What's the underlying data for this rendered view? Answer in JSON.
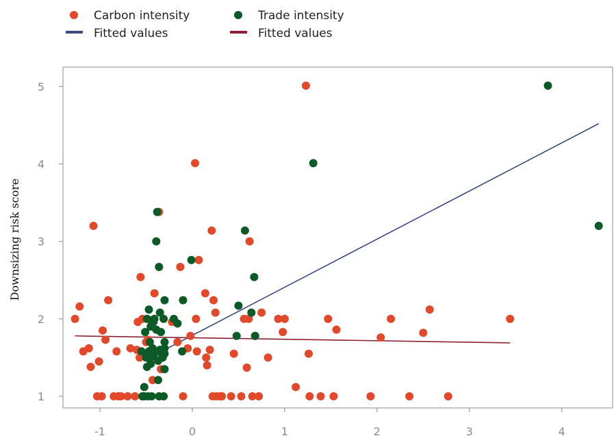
{
  "chart_data": {
    "type": "scatter",
    "title": "",
    "xlabel": "",
    "ylabel": "Downsizing risk score",
    "xlim": [
      -1.4,
      4.55
    ],
    "ylim": [
      0.85,
      5.25
    ],
    "xticks": [
      -1,
      0,
      1,
      2,
      3,
      4
    ],
    "yticks": [
      1,
      2,
      3,
      4,
      5
    ],
    "grid": false,
    "legend_position": "top-left",
    "series": [
      {
        "name": "Carbon intensity",
        "kind": "scatter",
        "color": "#e2492a",
        "points": [
          [
            -1.27,
            2.0
          ],
          [
            -1.22,
            2.16
          ],
          [
            -1.18,
            1.58
          ],
          [
            -1.12,
            1.62
          ],
          [
            -1.1,
            1.38
          ],
          [
            -1.07,
            3.2
          ],
          [
            -1.03,
            1.0
          ],
          [
            -1.01,
            1.45
          ],
          [
            -0.98,
            1.0
          ],
          [
            -0.97,
            1.85
          ],
          [
            -0.94,
            1.73
          ],
          [
            -0.91,
            2.24
          ],
          [
            -0.85,
            1.0
          ],
          [
            -0.82,
            1.58
          ],
          [
            -0.8,
            1.0
          ],
          [
            -0.77,
            1.0
          ],
          [
            -0.7,
            1.0
          ],
          [
            -0.67,
            1.62
          ],
          [
            -0.62,
            1.0
          ],
          [
            -0.6,
            1.6
          ],
          [
            -0.59,
            1.96
          ],
          [
            -0.57,
            1.5
          ],
          [
            -0.56,
            2.54
          ],
          [
            -0.54,
            2.0
          ],
          [
            -0.5,
            1.7
          ],
          [
            -0.48,
            1.73
          ],
          [
            -0.45,
            1.98
          ],
          [
            -0.43,
            1.21
          ],
          [
            -0.41,
            2.33
          ],
          [
            -0.36,
            3.38
          ],
          [
            -0.34,
            1.35
          ],
          [
            -0.22,
            1.96
          ],
          [
            -0.16,
            1.7
          ],
          [
            -0.13,
            2.67
          ],
          [
            -0.1,
            1.0
          ],
          [
            -0.05,
            1.62
          ],
          [
            -0.02,
            1.78
          ],
          [
            0.03,
            4.01
          ],
          [
            0.04,
            2.0
          ],
          [
            0.05,
            1.58
          ],
          [
            0.07,
            2.76
          ],
          [
            0.14,
            2.33
          ],
          [
            0.15,
            1.5
          ],
          [
            0.16,
            1.4
          ],
          [
            0.19,
            1.6
          ],
          [
            0.21,
            3.14
          ],
          [
            0.22,
            1.0
          ],
          [
            0.23,
            2.24
          ],
          [
            0.25,
            2.08
          ],
          [
            0.26,
            1.0
          ],
          [
            0.3,
            1.0
          ],
          [
            0.32,
            1.0
          ],
          [
            0.42,
            1.0
          ],
          [
            0.45,
            1.55
          ],
          [
            0.53,
            1.0
          ],
          [
            0.56,
            2.0
          ],
          [
            0.59,
            1.37
          ],
          [
            0.61,
            2.0
          ],
          [
            0.62,
            3.0
          ],
          [
            0.65,
            1.0
          ],
          [
            0.68,
            1.78
          ],
          [
            0.72,
            1.0
          ],
          [
            0.75,
            2.08
          ],
          [
            0.82,
            1.5
          ],
          [
            0.93,
            2.0
          ],
          [
            0.98,
            1.83
          ],
          [
            1.0,
            2.0
          ],
          [
            1.12,
            1.12
          ],
          [
            1.23,
            5.01
          ],
          [
            1.26,
            1.55
          ],
          [
            1.27,
            1.0
          ],
          [
            1.39,
            1.0
          ],
          [
            1.47,
            2.0
          ],
          [
            1.53,
            1.0
          ],
          [
            1.56,
            1.86
          ],
          [
            1.93,
            1.0
          ],
          [
            2.04,
            1.76
          ],
          [
            2.15,
            2.0
          ],
          [
            2.35,
            1.0
          ],
          [
            2.5,
            1.82
          ],
          [
            2.57,
            2.12
          ],
          [
            2.77,
            1.0
          ],
          [
            3.44,
            2.0
          ]
        ]
      },
      {
        "name": "Trade intensity",
        "kind": "scatter",
        "color": "#0c5a28",
        "points": [
          [
            -0.55,
            1.58
          ],
          [
            -0.54,
            1.0
          ],
          [
            -0.52,
            1.12
          ],
          [
            -0.52,
            1.0
          ],
          [
            -0.51,
            1.83
          ],
          [
            -0.5,
            1.5
          ],
          [
            -0.49,
            2.0
          ],
          [
            -0.49,
            1.38
          ],
          [
            -0.48,
            1.0
          ],
          [
            -0.47,
            2.12
          ],
          [
            -0.47,
            1.58
          ],
          [
            -0.46,
            1.7
          ],
          [
            -0.46,
            1.48
          ],
          [
            -0.45,
            1.9
          ],
          [
            -0.45,
            1.42
          ],
          [
            -0.44,
            1.0
          ],
          [
            -0.43,
            1.62
          ],
          [
            -0.42,
            1.96
          ],
          [
            -0.42,
            1.52
          ],
          [
            -0.41,
            2.0
          ],
          [
            -0.4,
            1.58
          ],
          [
            -0.39,
            1.86
          ],
          [
            -0.39,
            3.0
          ],
          [
            -0.38,
            3.38
          ],
          [
            -0.37,
            1.46
          ],
          [
            -0.37,
            1.21
          ],
          [
            -0.36,
            2.67
          ],
          [
            -0.36,
            1.0
          ],
          [
            -0.35,
            2.08
          ],
          [
            -0.35,
            1.6
          ],
          [
            -0.34,
            1.83
          ],
          [
            -0.33,
            1.54
          ],
          [
            -0.32,
            1.5
          ],
          [
            -0.31,
            2.0
          ],
          [
            -0.31,
            1.0
          ],
          [
            -0.3,
            2.24
          ],
          [
            -0.3,
            1.7
          ],
          [
            -0.3,
            1.55
          ],
          [
            -0.3,
            1.62
          ],
          [
            -0.3,
            1.35
          ],
          [
            -0.2,
            2.0
          ],
          [
            -0.16,
            1.94
          ],
          [
            -0.11,
            1.58
          ],
          [
            -0.1,
            2.24
          ],
          [
            -0.01,
            2.76
          ],
          [
            0.48,
            1.78
          ],
          [
            0.5,
            2.17
          ],
          [
            0.57,
            3.14
          ],
          [
            0.64,
            2.08
          ],
          [
            0.67,
            2.54
          ],
          [
            0.68,
            1.78
          ],
          [
            1.31,
            4.01
          ],
          [
            3.85,
            5.01
          ],
          [
            4.4,
            3.2
          ]
        ]
      },
      {
        "name": "Fitted values",
        "kind": "line",
        "color": "#3b4a7c",
        "points": [
          [
            -0.3,
            1.6
          ],
          [
            4.4,
            4.52
          ]
        ]
      },
      {
        "name": "Fitted values",
        "kind": "line",
        "color": "#8c1f33",
        "points": [
          [
            -1.27,
            1.78
          ],
          [
            3.44,
            1.69
          ]
        ]
      }
    ]
  }
}
